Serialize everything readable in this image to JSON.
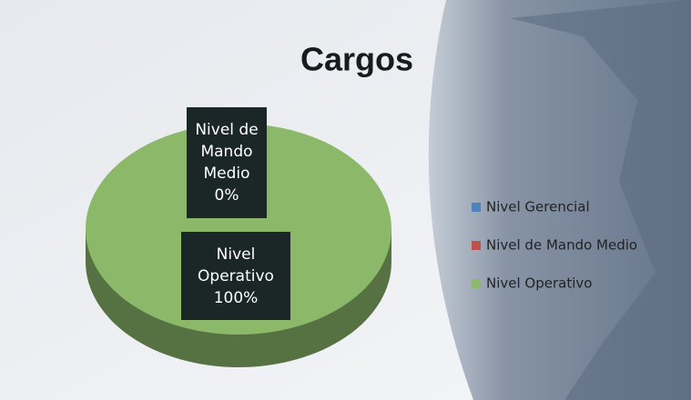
{
  "chart_data": {
    "type": "pie",
    "title": "Cargos",
    "categories": [
      "Nivel Gerencial",
      "Nivel de Mando Medio",
      "Nivel Operativo"
    ],
    "values": [
      0,
      0,
      100
    ],
    "value_labels": [
      null,
      "0%",
      "100%"
    ],
    "colors": [
      "#4f81bd",
      "#c0504d",
      "#8cb86a"
    ],
    "legend": "right"
  }
}
